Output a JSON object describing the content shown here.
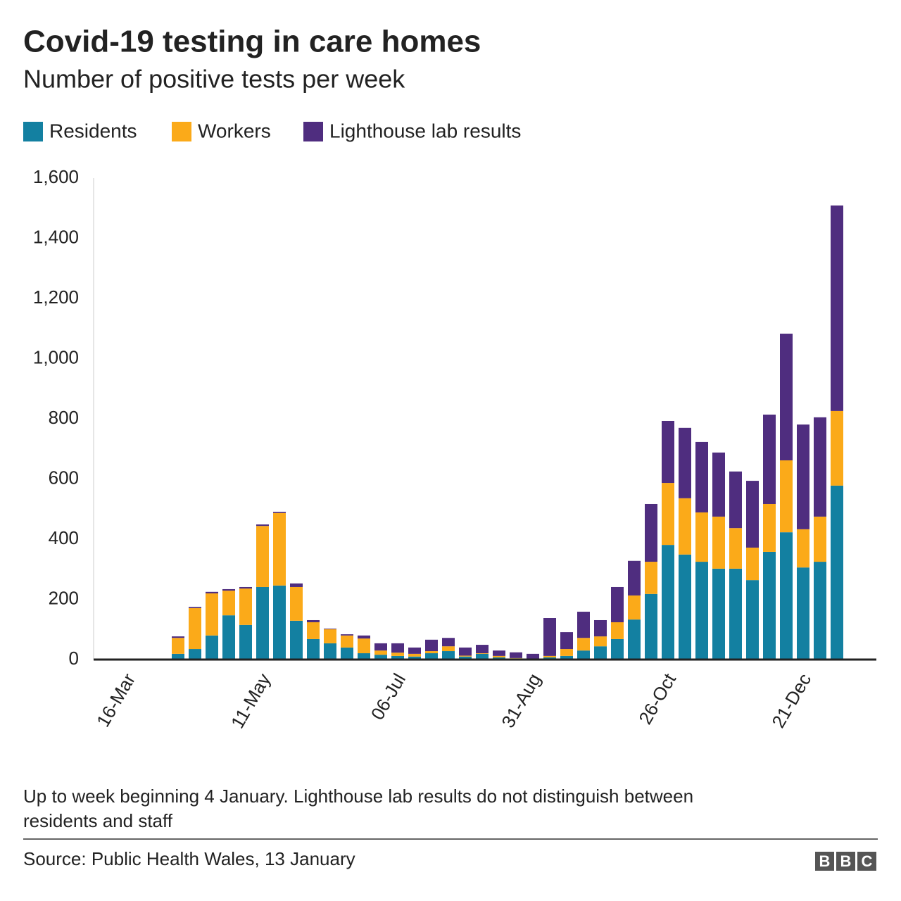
{
  "chart_data": {
    "type": "stacked_bar",
    "title": "Covid-19 testing in care homes",
    "subtitle": "Number of positive tests per week",
    "categories": [
      "16-Mar",
      null,
      null,
      null,
      null,
      null,
      null,
      null,
      "11-May",
      null,
      null,
      null,
      null,
      null,
      null,
      null,
      "06-Jul",
      null,
      null,
      null,
      null,
      null,
      null,
      null,
      "31-Aug",
      null,
      null,
      null,
      null,
      null,
      null,
      null,
      "26-Oct",
      null,
      null,
      null,
      null,
      null,
      null,
      null,
      "21-Dec",
      null,
      null
    ],
    "series": [
      {
        "name": "Residents",
        "color": "#1380a1",
        "values": [
          0,
          0,
          0,
          19,
          35,
          80,
          147,
          115,
          241,
          246,
          129,
          68,
          54,
          40,
          21,
          16,
          12,
          10,
          21,
          28,
          10,
          19,
          7,
          4,
          2,
          7,
          12,
          30,
          44,
          68,
          133,
          218,
          381,
          349,
          325,
          302,
          302,
          264,
          358,
          423,
          306,
          325,
          578
        ]
      },
      {
        "name": "Workers",
        "color": "#fbaa19",
        "values": [
          0,
          0,
          0,
          53,
          136,
          140,
          82,
          121,
          203,
          241,
          112,
          56,
          47,
          40,
          49,
          14,
          11,
          9,
          7,
          16,
          3,
          2,
          5,
          1,
          1,
          5,
          23,
          42,
          33,
          56,
          80,
          107,
          206,
          187,
          164,
          173,
          135,
          108,
          159,
          239,
          127,
          150,
          248
        ]
      },
      {
        "name": "Lighthouse lab results",
        "color": "#4f2d7f",
        "values": [
          0,
          0,
          0,
          5,
          4,
          5,
          5,
          5,
          5,
          4,
          12,
          7,
          2,
          4,
          10,
          24,
          31,
          21,
          38,
          28,
          27,
          28,
          18,
          19,
          16,
          126,
          56,
          87,
          54,
          117,
          115,
          192,
          206,
          234,
          234,
          213,
          188,
          222,
          297,
          421,
          348,
          330,
          683
        ]
      }
    ],
    "ylim": [
      0,
      1600
    ],
    "yticks": [
      0,
      200,
      400,
      600,
      800,
      {
        "value": 1000,
        "label": "1,000"
      },
      {
        "value": 1200,
        "label": "1,200"
      },
      {
        "value": 1400,
        "label": "1,400"
      },
      {
        "value": 1600,
        "label": "1,600"
      }
    ],
    "grid": false,
    "note": "Up to week beginning 4 January. Lighthouse lab results do not distinguish between",
    "note_line2": "residents and staff",
    "source": "Source: Public Health Wales, 13 January",
    "logo": [
      "B",
      "B",
      "C"
    ]
  }
}
